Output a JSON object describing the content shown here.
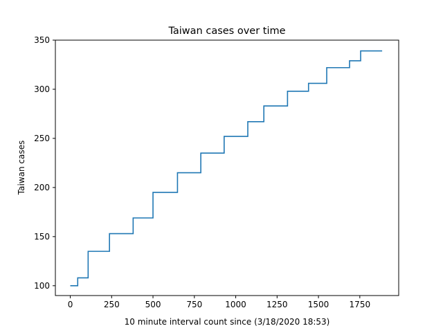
{
  "chart_data": {
    "type": "line",
    "title": "Taiwan cases over time",
    "xlabel": "10 minute interval count since (3/18/2020 18:53)",
    "ylabel": "Taiwan cases",
    "xlim": [
      -90,
      1985
    ],
    "ylim": [
      90,
      350
    ],
    "xticks": [
      0,
      250,
      500,
      750,
      1000,
      1250,
      1500,
      1750
    ],
    "yticks": [
      100,
      150,
      200,
      250,
      300,
      350
    ],
    "grid": false,
    "legend": "none",
    "series": [
      {
        "line_style": "steps",
        "color": "#1f77b4",
        "x": [
          0,
          45,
          45,
          108,
          108,
          237,
          237,
          380,
          380,
          500,
          500,
          648,
          648,
          789,
          789,
          930,
          930,
          1073,
          1073,
          1170,
          1170,
          1313,
          1313,
          1440,
          1440,
          1550,
          1550,
          1688,
          1688,
          1755,
          1755,
          1885
        ],
        "y": [
          100,
          100,
          108,
          108,
          135,
          135,
          153,
          153,
          169,
          169,
          195,
          195,
          215,
          215,
          235,
          235,
          252,
          252,
          267,
          267,
          283,
          283,
          298,
          298,
          306,
          306,
          322,
          322,
          329,
          329,
          339,
          339
        ]
      }
    ]
  }
}
